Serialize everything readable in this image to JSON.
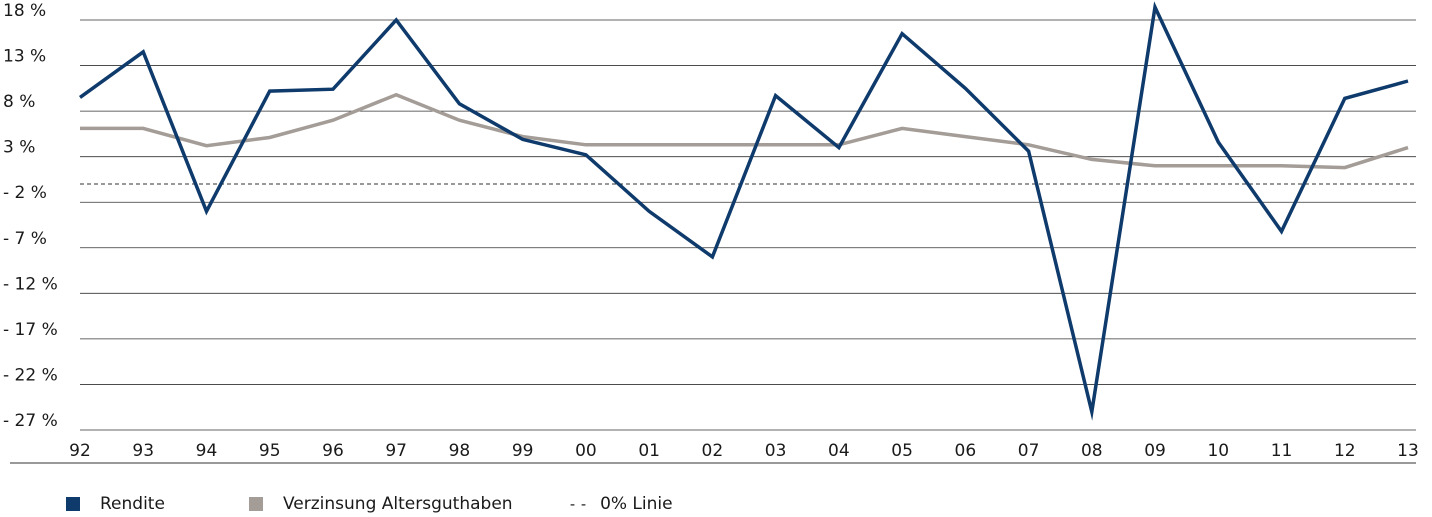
{
  "chart_data": {
    "type": "line",
    "categories": [
      "92",
      "93",
      "94",
      "95",
      "96",
      "97",
      "98",
      "99",
      "00",
      "01",
      "02",
      "03",
      "04",
      "05",
      "06",
      "07",
      "08",
      "09",
      "10",
      "11",
      "12",
      "13"
    ],
    "yticks": [
      "18 %",
      "13 %",
      "8 %",
      "3 %",
      "- 2 %",
      "- 7 %",
      "- 12 %",
      "- 17 %",
      "- 22 %",
      "- 27 %"
    ],
    "ylim": [
      -27,
      18
    ],
    "reference_line": {
      "value": 0,
      "label": "0% Linie",
      "style": "dashed"
    },
    "series": [
      {
        "name": "Rendite",
        "color": "#0e3a6c",
        "values": [
          9.5,
          14.5,
          -3.0,
          10.2,
          10.4,
          18.0,
          8.8,
          4.9,
          3.2,
          -3.0,
          -8.0,
          9.7,
          4.0,
          16.5,
          10.5,
          3.6,
          -25.0,
          19.4,
          4.6,
          -5.2,
          9.4,
          11.3
        ]
      },
      {
        "name": "Verzinsung Altersguthaben",
        "color": "#a39c97",
        "values": [
          6.1,
          6.1,
          4.2,
          5.1,
          7.0,
          9.8,
          7.0,
          5.2,
          4.3,
          4.3,
          4.3,
          4.3,
          4.3,
          6.1,
          5.2,
          4.3,
          2.7,
          2.0,
          2.0,
          2.0,
          1.8,
          4.0
        ]
      }
    ],
    "grid": true,
    "legend_position": "bottom-left"
  }
}
